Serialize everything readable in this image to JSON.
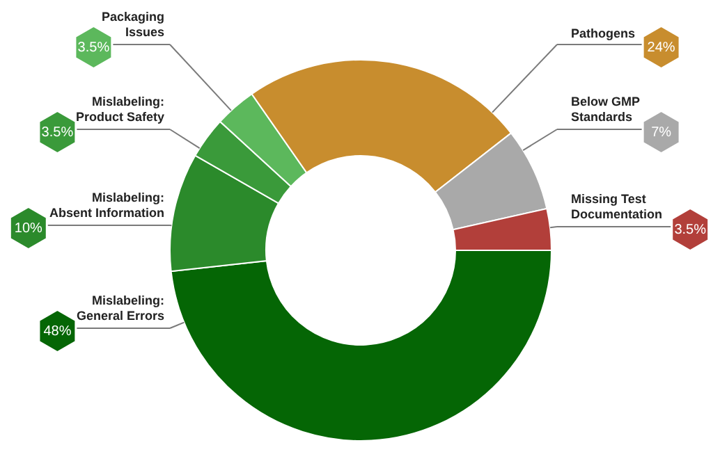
{
  "chart_data": {
    "type": "donut",
    "categories": [
      "Mislabeling: General Errors",
      "Mislabeling: Absent Information",
      "Mislabeling: Product Safety",
      "Packaging Issues",
      "Pathogens",
      "Below GMP Standards",
      "Missing Test Documentation"
    ],
    "values": [
      48,
      10,
      3.5,
      3.5,
      24,
      7,
      3.5
    ],
    "value_labels": [
      "48%",
      "10%",
      "3.5%",
      "3.5%",
      "24%",
      "7%",
      "3.5%"
    ],
    "colors": [
      "#056605",
      "#2b8a2b",
      "#3a9a3a",
      "#5cb85c",
      "#c88d2e",
      "#a9a9a9",
      "#b23f3a"
    ]
  }
}
